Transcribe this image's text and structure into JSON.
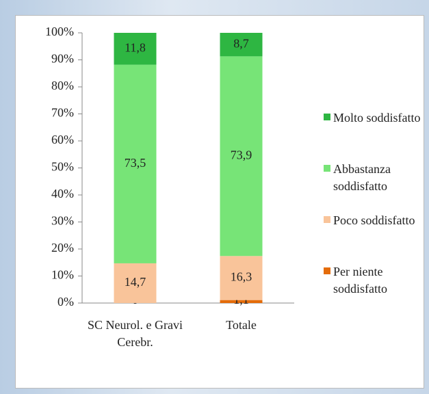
{
  "chart_data": {
    "type": "stacked_bar",
    "categories": [
      "SC Neurol. e Gravi Cerebr.",
      "Totale"
    ],
    "series": [
      {
        "name": "Per niente soddisfatto",
        "color": "#e46c0a",
        "values": [
          0,
          1.1
        ],
        "value_labels": [
          "0",
          "1,1"
        ]
      },
      {
        "name": "Poco soddisfatto",
        "color": "#f9c49a",
        "values": [
          14.7,
          16.3
        ],
        "value_labels": [
          "14,7",
          "16,3"
        ]
      },
      {
        "name": "Abbastanza soddisfatto",
        "color": "#77e477",
        "values": [
          73.5,
          73.9
        ],
        "value_labels": [
          "73,5",
          "73,9"
        ]
      },
      {
        "name": "Molto soddisfatto",
        "color": "#2eb642",
        "values": [
          11.8,
          8.7
        ],
        "value_labels": [
          "11,8",
          "8,7"
        ]
      }
    ],
    "ylim": [
      0,
      100
    ],
    "yticks": [
      {
        "value": 0,
        "label": "0%"
      },
      {
        "value": 10,
        "label": "10%"
      },
      {
        "value": 20,
        "label": "20%"
      },
      {
        "value": 30,
        "label": "30%"
      },
      {
        "value": 40,
        "label": "40%"
      },
      {
        "value": 50,
        "label": "50%"
      },
      {
        "value": 60,
        "label": "60%"
      },
      {
        "value": 70,
        "label": "70%"
      },
      {
        "value": 80,
        "label": "80%"
      },
      {
        "value": 90,
        "label": "90%"
      },
      {
        "value": 100,
        "label": "100%"
      }
    ],
    "grid": false,
    "legend": "right"
  }
}
